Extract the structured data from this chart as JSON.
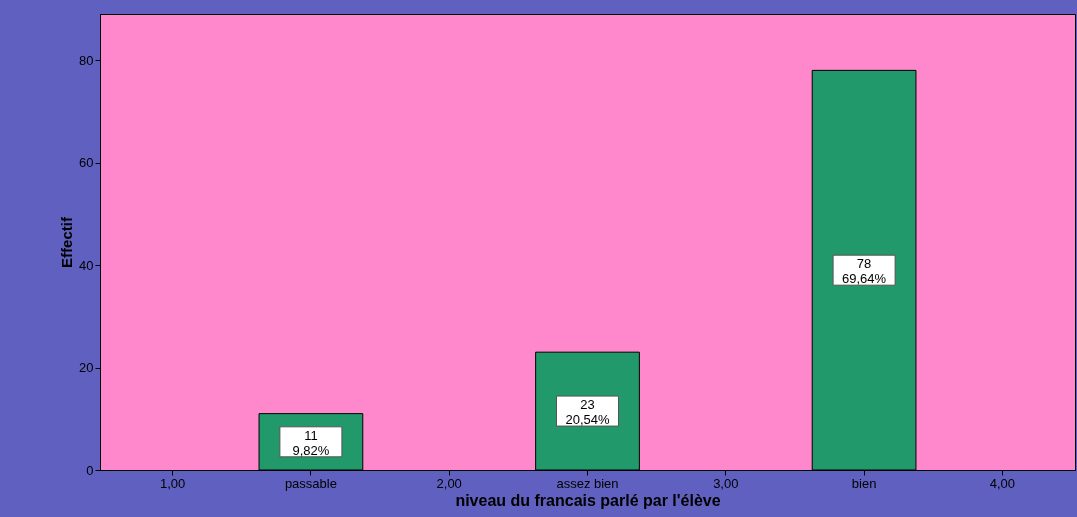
{
  "chart_data": {
    "type": "bar",
    "xlabel": "niveau  du francais parlé par l'élève",
    "ylabel": "Effectif",
    "categories": [
      "1,00",
      "passable",
      "2,00",
      "assez bien",
      "3,00",
      "bien",
      "4,00"
    ],
    "values": [
      null,
      11,
      null,
      23,
      null,
      78,
      null
    ],
    "value_labels": [
      null,
      "11\n9,82%",
      null,
      "23\n20,54%",
      null,
      "78\n69,64%",
      null
    ],
    "color": "#22996a",
    "ylim": [
      0,
      89
    ],
    "yticks": [
      0,
      20,
      40,
      60,
      80
    ],
    "grid": false
  }
}
